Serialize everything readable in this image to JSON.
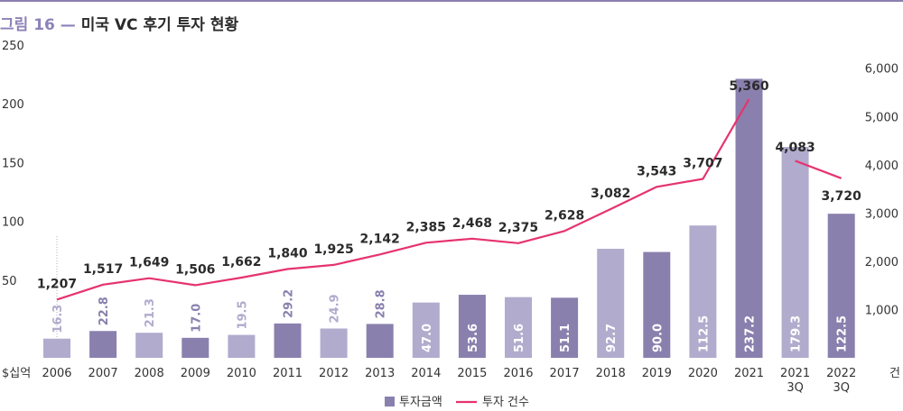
{
  "header": {
    "figure_label": "그림 16",
    "dash": "—",
    "title": "미국 VC 후기 투자 현황"
  },
  "colors": {
    "bar_dark": "#8a80ae",
    "bar_light": "#b1abcd",
    "line": "#e6336f",
    "accent": "#8d82b8"
  },
  "chart_data": {
    "type": "bar",
    "categories": [
      "2006",
      "2007",
      "2008",
      "2009",
      "2010",
      "2011",
      "2012",
      "2013",
      "2014",
      "2015",
      "2016",
      "2017",
      "2018",
      "2019",
      "2020",
      "2021",
      "2021\n3Q",
      "2022\n3Q"
    ],
    "series": [
      {
        "name": "투자금액",
        "type": "bar",
        "axis": "left",
        "values": [
          16.3,
          22.8,
          21.3,
          17.0,
          19.5,
          29.2,
          24.9,
          28.8,
          47.0,
          53.6,
          51.6,
          51.1,
          92.7,
          90.0,
          112.5,
          237.2,
          179.3,
          122.5
        ],
        "labels": [
          "16.3",
          "22.8",
          "21.3",
          "17.0",
          "19.5",
          "29.2",
          "24.9",
          "28.8",
          "47.0",
          "53.6",
          "51.6",
          "51.1",
          "92.7",
          "90.0",
          "112.5",
          "237.2",
          "179.3",
          "122.5"
        ],
        "shades": [
          "light",
          "dark",
          "light",
          "dark",
          "light",
          "dark",
          "light",
          "dark",
          "light",
          "dark",
          "light",
          "dark",
          "light",
          "dark",
          "light",
          "dark",
          "light",
          "dark"
        ]
      },
      {
        "name": "투자 건수",
        "type": "line",
        "axis": "right",
        "values": [
          1207,
          1517,
          1649,
          1506,
          1662,
          1840,
          1925,
          2142,
          2385,
          2468,
          2375,
          2628,
          3082,
          3543,
          3707,
          5360,
          4083,
          3720
        ],
        "labels": [
          "1,207",
          "1,517",
          "1,649",
          "1,506",
          "1,662",
          "1,840",
          "1,925",
          "2,142",
          "2,385",
          "2,468",
          "2,375",
          "2,628",
          "3,082",
          "3,543",
          "3,707",
          "5,360",
          "4,083",
          "3,720"
        ],
        "segments": [
          [
            0,
            15
          ],
          [
            16,
            17
          ]
        ]
      }
    ],
    "left_axis": {
      "unit": "$십억",
      "ticks": [
        50,
        100,
        150,
        200,
        250
      ],
      "tick_labels": [
        "50",
        "100",
        "150",
        "200",
        "250"
      ],
      "range": [
        0,
        250
      ]
    },
    "right_axis": {
      "unit": "건",
      "ticks": [
        1000,
        2000,
        3000,
        4000,
        5000,
        6000
      ],
      "tick_labels": [
        "1,000",
        "2,000",
        "3,000",
        "4,000",
        "5,000",
        "6,000"
      ],
      "range": [
        0,
        6000
      ]
    },
    "grid": false,
    "legend_position": "bottom-center"
  }
}
